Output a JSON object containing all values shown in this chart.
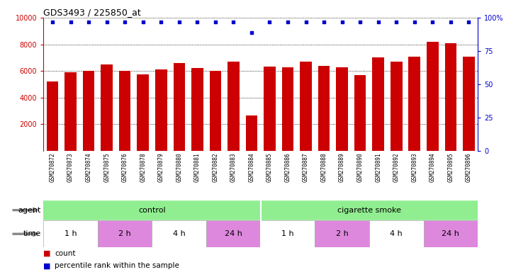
{
  "title": "GDS3493 / 225850_at",
  "samples": [
    "GSM270872",
    "GSM270873",
    "GSM270874",
    "GSM270875",
    "GSM270876",
    "GSM270878",
    "GSM270879",
    "GSM270880",
    "GSM270881",
    "GSM270882",
    "GSM270883",
    "GSM270884",
    "GSM270885",
    "GSM270886",
    "GSM270887",
    "GSM270888",
    "GSM270889",
    "GSM270890",
    "GSM270891",
    "GSM270892",
    "GSM270893",
    "GSM270894",
    "GSM270895",
    "GSM270896"
  ],
  "counts": [
    5200,
    5900,
    6000,
    6500,
    6000,
    5750,
    6100,
    6600,
    6200,
    6000,
    6700,
    2650,
    6350,
    6300,
    6700,
    6400,
    6300,
    5700,
    7000,
    6700,
    7050,
    8200,
    8100,
    7100
  ],
  "percentile_ranks": [
    97,
    97,
    97,
    97,
    97,
    97,
    97,
    97,
    97,
    97,
    97,
    89,
    97,
    97,
    97,
    97,
    97,
    97,
    97,
    97,
    97,
    97,
    97,
    97
  ],
  "bar_color": "#cc0000",
  "dot_color": "#0000cc",
  "ylim_left": [
    0,
    10000
  ],
  "ylim_right": [
    0,
    100
  ],
  "yticks_left": [
    2000,
    4000,
    6000,
    8000,
    10000
  ],
  "yticks_right": [
    0,
    25,
    50,
    75,
    100
  ],
  "agent_groups": [
    {
      "label": "control",
      "start": 0,
      "end": 12,
      "color": "#90ee90"
    },
    {
      "label": "cigarette smoke",
      "start": 12,
      "end": 24,
      "color": "#90ee90"
    }
  ],
  "time_groups": [
    {
      "label": "1 h",
      "start": 0,
      "end": 3,
      "color": "#ffffff"
    },
    {
      "label": "2 h",
      "start": 3,
      "end": 6,
      "color": "#dd88dd"
    },
    {
      "label": "4 h",
      "start": 6,
      "end": 9,
      "color": "#ffffff"
    },
    {
      "label": "24 h",
      "start": 9,
      "end": 12,
      "color": "#dd88dd"
    },
    {
      "label": "1 h",
      "start": 12,
      "end": 15,
      "color": "#ffffff"
    },
    {
      "label": "2 h",
      "start": 15,
      "end": 18,
      "color": "#dd88dd"
    },
    {
      "label": "4 h",
      "start": 18,
      "end": 21,
      "color": "#ffffff"
    },
    {
      "label": "24 h",
      "start": 21,
      "end": 24,
      "color": "#dd88dd"
    }
  ],
  "background_color": "#ffffff",
  "tick_label_color_left": "#cc0000",
  "tick_label_color_right": "#0000cc",
  "legend_count_color": "#cc0000",
  "legend_dot_color": "#0000cc"
}
